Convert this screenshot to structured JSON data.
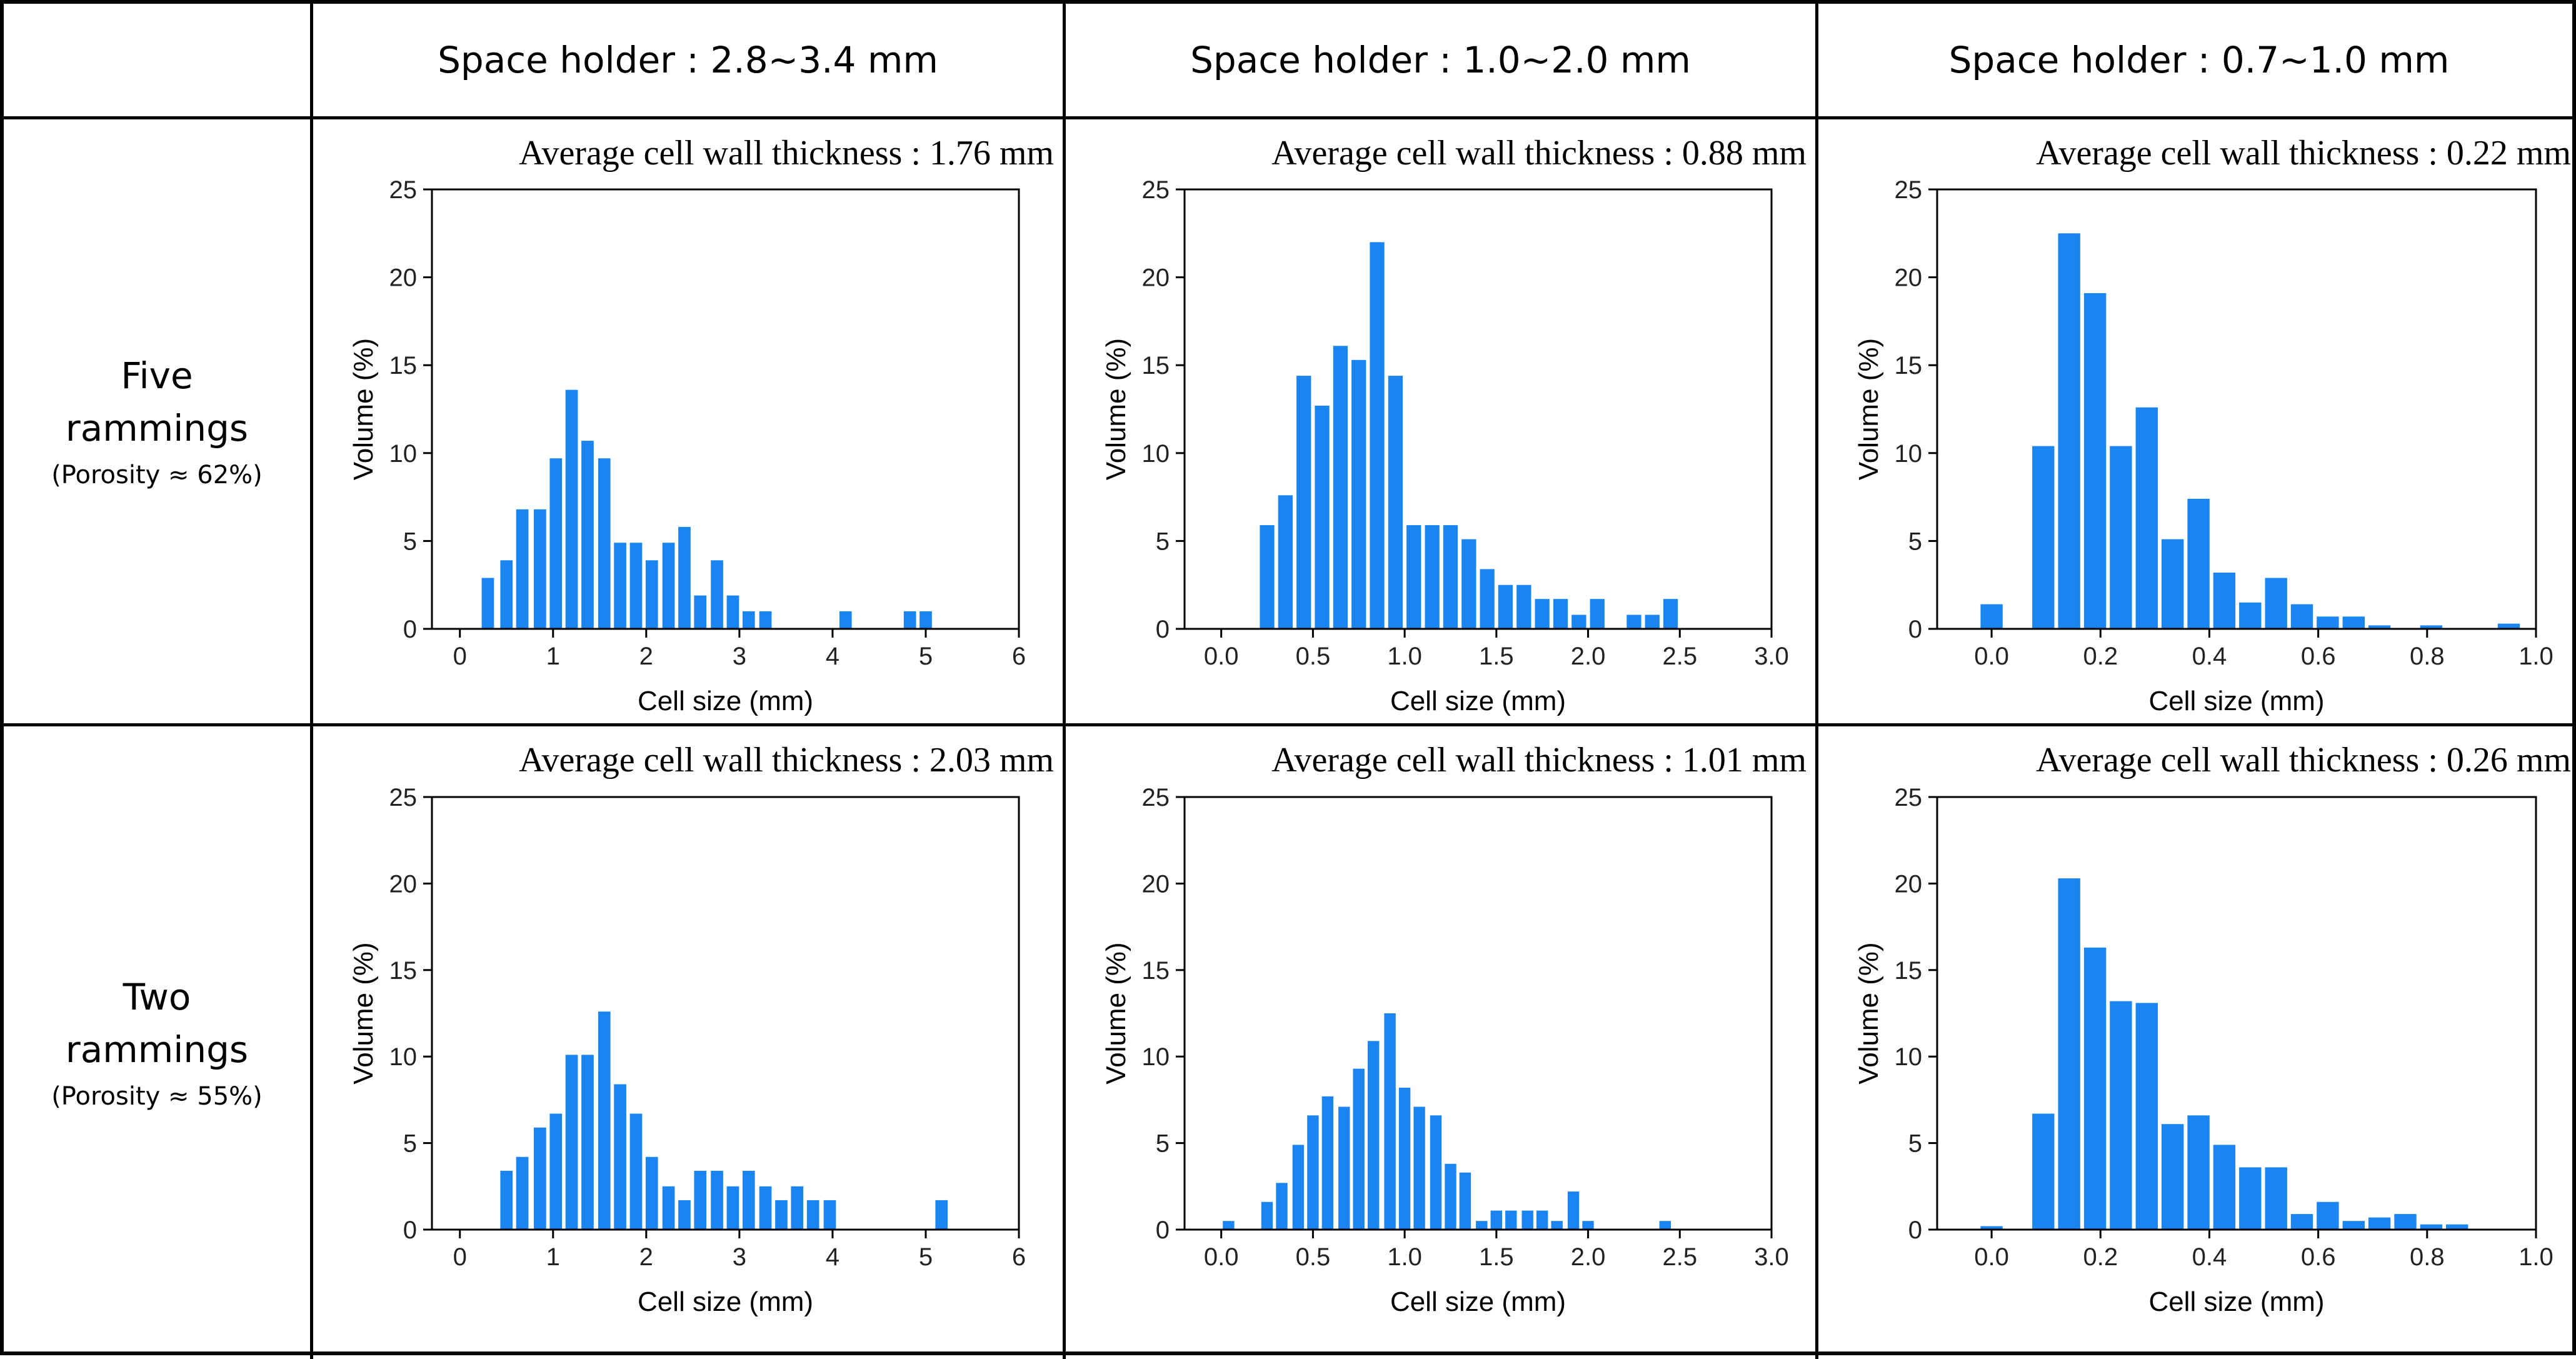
{
  "header": {
    "corner": "",
    "columns": [
      "Space holder : 2.8~3.4 mm",
      "Space holder : 1.0~2.0 mm",
      "Space holder : 0.7~1.0 mm"
    ]
  },
  "rows": [
    {
      "title_line1": "Five",
      "title_line2": "rammings",
      "porosity": "(Porosity ≈ 62%)"
    },
    {
      "title_line1": "Two",
      "title_line2": "rammings",
      "porosity": "(Porosity ≈ 55%)"
    }
  ],
  "colors": {
    "bar": "#1a85f0",
    "axis": "#000000",
    "border": "#000000"
  },
  "chart_data": [
    {
      "type": "bar",
      "id": "r0c0",
      "row": "Five rammings",
      "column": "Space holder : 2.8~3.4 mm",
      "annotation": "Average cell wall thickness : 1.76 mm",
      "xlabel": "Cell size (mm)",
      "ylabel": "Volume (%)",
      "xlim": [
        -0.3,
        6
      ],
      "ylim": [
        0,
        25
      ],
      "xticks": [
        0,
        1,
        2,
        3,
        4,
        5,
        6
      ],
      "xtick_labels": [
        "0",
        "1",
        "2",
        "3",
        "4",
        "5",
        "6"
      ],
      "yticks": [
        0,
        5,
        10,
        15,
        20,
        25
      ],
      "ytick_labels": [
        "0",
        "5",
        "10",
        "15",
        "20",
        "25"
      ],
      "bin_width": 0.1724,
      "x": [
        0.3,
        0.5,
        0.67,
        0.86,
        1.03,
        1.2,
        1.37,
        1.55,
        1.72,
        1.89,
        2.06,
        2.24,
        2.41,
        2.58,
        2.76,
        2.93,
        3.1,
        3.28,
        4.14,
        4.83,
        5.0
      ],
      "values": [
        2.9,
        3.9,
        6.8,
        6.8,
        9.7,
        13.6,
        10.7,
        9.7,
        4.9,
        4.9,
        3.9,
        4.9,
        5.8,
        1.9,
        3.9,
        1.9,
        1.0,
        1.0,
        1.0,
        1.0,
        1.0
      ]
    },
    {
      "type": "bar",
      "id": "r0c1",
      "row": "Five rammings",
      "column": "Space holder : 1.0~2.0 mm",
      "annotation": "Average cell wall thickness : 0.88 mm",
      "xlabel": "Cell size (mm)",
      "ylabel": "Volume (%)",
      "xlim": [
        -0.2,
        3.0
      ],
      "ylim": [
        0,
        25
      ],
      "xticks": [
        0,
        0.5,
        1.0,
        1.5,
        2.0,
        2.5,
        3.0
      ],
      "xtick_labels": [
        "0.0",
        "0.5",
        "1.0",
        "1.5",
        "2.0",
        "2.5",
        "3.0"
      ],
      "yticks": [
        0,
        5,
        10,
        15,
        20,
        25
      ],
      "ytick_labels": [
        "0",
        "5",
        "10",
        "15",
        "20",
        "25"
      ],
      "bin_width": 0.1,
      "x": [
        0.25,
        0.35,
        0.45,
        0.55,
        0.65,
        0.75,
        0.85,
        0.95,
        1.05,
        1.15,
        1.25,
        1.35,
        1.45,
        1.55,
        1.65,
        1.75,
        1.85,
        1.95,
        2.05,
        2.15,
        2.25,
        2.35,
        2.45
      ],
      "values": [
        5.9,
        7.6,
        14.4,
        12.7,
        16.1,
        15.3,
        22.0,
        14.4,
        5.9,
        5.9,
        5.9,
        5.1,
        3.4,
        2.5,
        2.5,
        1.7,
        1.7,
        0.8,
        1.7,
        0.0,
        0.8,
        0.8,
        1.7
      ]
    },
    {
      "type": "bar",
      "id": "r0c2",
      "row": "Five rammings",
      "column": "Space holder : 0.7~1.0 mm",
      "annotation": "Average cell wall thickness : 0.22 mm",
      "xlabel": "Cell size (mm)",
      "ylabel": "Volume (%)",
      "xlim": [
        -0.1,
        1.0
      ],
      "ylim": [
        0,
        25
      ],
      "xticks": [
        0,
        0.2,
        0.4,
        0.6,
        0.8,
        1.0
      ],
      "xtick_labels": [
        "0.0",
        "0.2",
        "0.4",
        "0.6",
        "0.8",
        "1.0"
      ],
      "yticks": [
        0,
        5,
        10,
        15,
        20,
        25
      ],
      "ytick_labels": [
        "0",
        "5",
        "10",
        "15",
        "20",
        "25"
      ],
      "bin_width": 0.0475,
      "x": [
        0.0,
        0.0475,
        0.095,
        0.1425,
        0.19,
        0.2375,
        0.285,
        0.3325,
        0.38,
        0.4275,
        0.475,
        0.5225,
        0.57,
        0.6175,
        0.665,
        0.7125,
        0.76,
        0.8075,
        0.855,
        0.9025,
        0.95
      ],
      "values": [
        1.4,
        0.0,
        10.4,
        22.5,
        19.1,
        10.4,
        12.6,
        5.1,
        7.4,
        3.2,
        1.5,
        2.9,
        1.4,
        0.7,
        0.7,
        0.2,
        0.0,
        0.2,
        0.0,
        0.0,
        0.3
      ]
    },
    {
      "type": "bar",
      "id": "r1c0",
      "row": "Two rammings",
      "column": "Space holder : 2.8~3.4 mm",
      "annotation": "Average cell wall thickness : 2.03 mm",
      "xlabel": "Cell size (mm)",
      "ylabel": "Volume (%)",
      "xlim": [
        -0.3,
        6
      ],
      "ylim": [
        0,
        25
      ],
      "xticks": [
        0,
        1,
        2,
        3,
        4,
        5,
        6
      ],
      "xtick_labels": [
        "0",
        "1",
        "2",
        "3",
        "4",
        "5",
        "6"
      ],
      "yticks": [
        0,
        5,
        10,
        15,
        20,
        25
      ],
      "ytick_labels": [
        "0",
        "5",
        "10",
        "15",
        "20",
        "25"
      ],
      "bin_width": 0.1724,
      "x": [
        0.5,
        0.67,
        0.86,
        1.03,
        1.2,
        1.37,
        1.55,
        1.72,
        1.89,
        2.06,
        2.24,
        2.41,
        2.58,
        2.76,
        2.93,
        3.1,
        3.28,
        3.45,
        3.62,
        3.79,
        3.97,
        4.14,
        4.31,
        5.17
      ],
      "values": [
        3.4,
        4.2,
        5.9,
        6.7,
        10.1,
        10.1,
        12.6,
        8.4,
        6.7,
        4.2,
        2.5,
        1.7,
        3.4,
        3.4,
        2.5,
        3.4,
        2.5,
        1.7,
        2.5,
        1.7,
        1.7,
        0.0,
        0.0,
        1.7
      ]
    },
    {
      "type": "bar",
      "id": "r1c1",
      "row": "Two rammings",
      "column": "Space holder : 1.0~2.0 mm",
      "annotation": "Average cell wall thickness : 1.01 mm",
      "xlabel": "Cell size (mm)",
      "ylabel": "Volume (%)",
      "xlim": [
        -0.2,
        3.0
      ],
      "ylim": [
        0,
        25
      ],
      "xticks": [
        0,
        0.5,
        1.0,
        1.5,
        2.0,
        2.5,
        3.0
      ],
      "xtick_labels": [
        "0.0",
        "0.5",
        "1.0",
        "1.5",
        "2.0",
        "2.5",
        "3.0"
      ],
      "yticks": [
        0,
        5,
        10,
        15,
        20,
        25
      ],
      "ytick_labels": [
        "0",
        "5",
        "10",
        "15",
        "20",
        "25"
      ],
      "bin_width": 0.0833,
      "x": [
        0.04,
        0.25,
        0.33,
        0.42,
        0.5,
        0.58,
        0.67,
        0.75,
        0.83,
        0.92,
        1.0,
        1.08,
        1.17,
        1.25,
        1.33,
        1.42,
        1.5,
        1.58,
        1.67,
        1.75,
        1.83,
        1.92,
        2.0,
        2.08,
        2.17,
        2.42
      ],
      "values": [
        0.5,
        1.6,
        2.7,
        4.9,
        6.6,
        7.7,
        7.1,
        9.3,
        10.9,
        12.5,
        8.2,
        7.1,
        6.6,
        3.8,
        3.3,
        0.5,
        1.1,
        1.1,
        1.1,
        1.1,
        0.5,
        2.2,
        0.5,
        0.0,
        0.0,
        0.5
      ]
    },
    {
      "type": "bar",
      "id": "r1c2",
      "row": "Two rammings",
      "column": "Space holder : 0.7~1.0 mm",
      "annotation": "Average cell wall thickness : 0.26 mm",
      "xlabel": "Cell size (mm)",
      "ylabel": "Volume (%)",
      "xlim": [
        -0.1,
        1.0
      ],
      "ylim": [
        0,
        25
      ],
      "xticks": [
        0,
        0.2,
        0.4,
        0.6,
        0.8,
        1.0
      ],
      "xtick_labels": [
        "0.0",
        "0.2",
        "0.4",
        "0.6",
        "0.8",
        "1.0"
      ],
      "yticks": [
        0,
        5,
        10,
        15,
        20,
        25
      ],
      "ytick_labels": [
        "0",
        "5",
        "10",
        "15",
        "20",
        "25"
      ],
      "bin_width": 0.0475,
      "x": [
        0.0,
        0.0475,
        0.095,
        0.1425,
        0.19,
        0.2375,
        0.285,
        0.3325,
        0.38,
        0.4275,
        0.475,
        0.5225,
        0.57,
        0.6175,
        0.665,
        0.7125,
        0.76,
        0.8075,
        0.855
      ],
      "values": [
        0.2,
        0.0,
        6.7,
        20.3,
        16.3,
        13.2,
        13.1,
        6.1,
        6.6,
        4.9,
        3.6,
        3.6,
        0.9,
        1.6,
        0.5,
        0.7,
        0.9,
        0.3,
        0.3
      ]
    }
  ]
}
